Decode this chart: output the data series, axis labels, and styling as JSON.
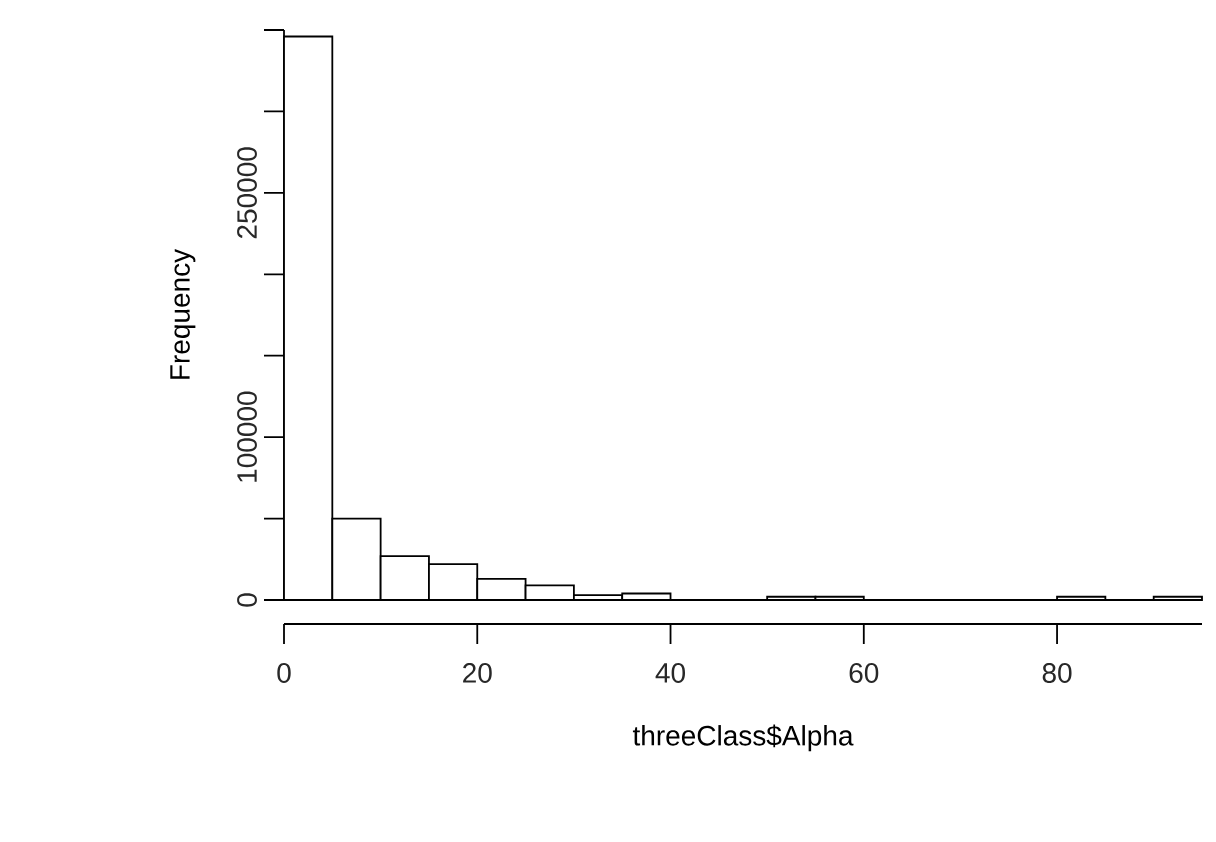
{
  "chart_data": {
    "type": "histogram",
    "xlabel": "threeClass$Alpha",
    "ylabel": "Frequency",
    "color": "#ffffff",
    "bins": [
      0,
      5,
      10,
      15,
      20,
      25,
      30,
      35,
      40,
      45,
      50,
      55,
      60,
      65,
      70,
      75,
      80,
      85,
      90,
      95
    ],
    "values": [
      346000,
      50000,
      27000,
      22000,
      13000,
      9000,
      3000,
      4000,
      0,
      0,
      2000,
      2000,
      0,
      0,
      0,
      0,
      2000,
      0,
      2000
    ],
    "xlim": [
      0,
      95
    ],
    "xticks": [
      0,
      20,
      40,
      60,
      80
    ],
    "ylim": [
      0,
      350000
    ],
    "yticks": [
      0,
      {
        "value": 50000,
        "label": null
      },
      {
        "value": 100000,
        "label": "100000"
      },
      {
        "value": 150000,
        "label": null
      },
      {
        "value": 200000,
        "label": null
      },
      {
        "value": 250000,
        "label": "250000"
      },
      {
        "value": 300000,
        "label": null
      },
      {
        "value": 350000,
        "label": null
      }
    ]
  }
}
